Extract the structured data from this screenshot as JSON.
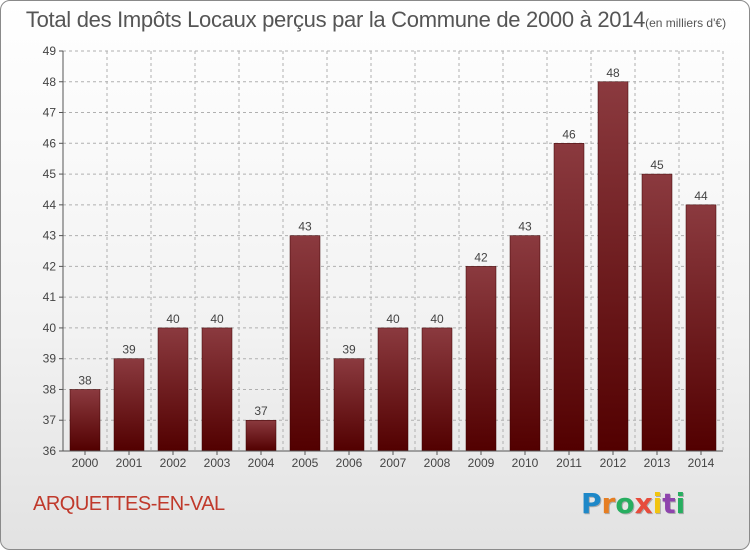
{
  "header": {
    "title": "Total des Impôts Locaux perçus par la Commune de 2000 à 2014",
    "unit": "(en milliers d'€)"
  },
  "commune_name": "ARQUETTES-EN-VAL",
  "logo": {
    "text": "Proxiti",
    "letter_colors": [
      "#1e88c8",
      "#e67e22",
      "#27ae60",
      "#e74c3c",
      "#f1c40f",
      "#8e44ad",
      "#27ae60"
    ]
  },
  "colors": {
    "bar_top": "#8b3a3f",
    "bar_bottom": "#520000",
    "grid": "#b0b0b0",
    "axis_text": "#444444",
    "commune_text": "#c0392b"
  },
  "chart_data": {
    "type": "bar",
    "categories": [
      "2000",
      "2001",
      "2002",
      "2003",
      "2004",
      "2005",
      "2006",
      "2007",
      "2008",
      "2009",
      "2010",
      "2011",
      "2012",
      "2013",
      "2014"
    ],
    "values": [
      38,
      39,
      40,
      40,
      37,
      43,
      39,
      40,
      40,
      42,
      43,
      46,
      48,
      45,
      44
    ],
    "data_labels": [
      "38",
      "39",
      "40",
      "40",
      "37",
      "43",
      "39",
      "40",
      "40",
      "42",
      "43",
      "46",
      "48",
      "45",
      "44"
    ],
    "title": "Total des Impôts Locaux perçus par la Commune de 2000 à 2014",
    "xlabel": "",
    "ylabel": "",
    "ylim": [
      36,
      49
    ],
    "yticks": [
      "36",
      "37",
      "38",
      "39",
      "40",
      "41",
      "42",
      "43",
      "44",
      "45",
      "46",
      "47",
      "48",
      "49"
    ],
    "grid": true
  }
}
